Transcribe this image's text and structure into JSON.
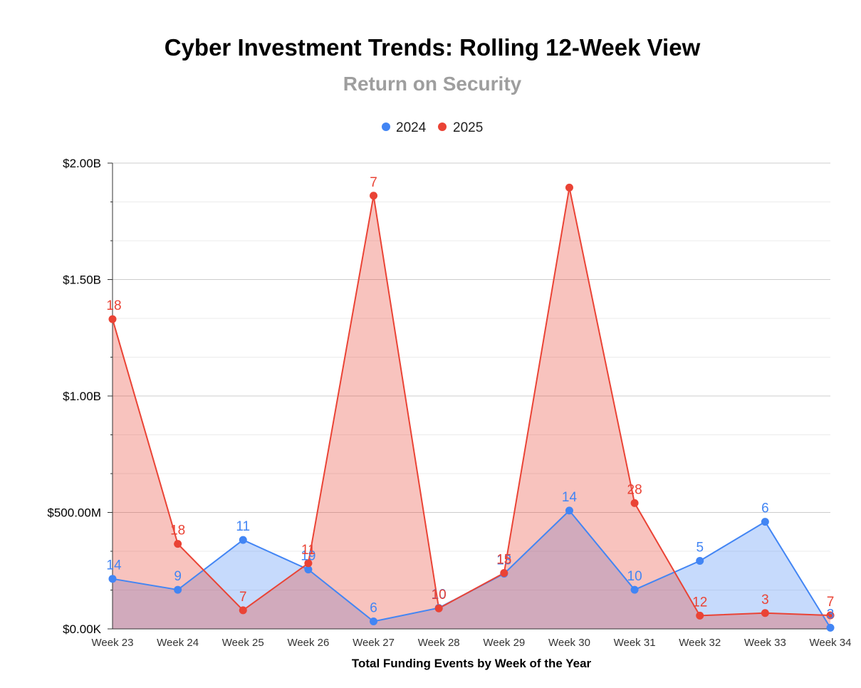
{
  "chart_data": {
    "type": "area",
    "title": "Cyber Investment Trends: Rolling 12-Week View",
    "subtitle": "Return on Security",
    "xlabel": "Total Funding Events by Week of the Year",
    "ylabel": "",
    "ylim": [
      0,
      2000000000
    ],
    "yticks": [
      {
        "value": 0,
        "label": "$0.00K"
      },
      {
        "value": 500000000,
        "label": "$500.00M"
      },
      {
        "value": 1000000000,
        "label": "$1.00B"
      },
      {
        "value": 1500000000,
        "label": "$1.50B"
      },
      {
        "value": 2000000000,
        "label": "$2.00B"
      }
    ],
    "grid": true,
    "legend_position": "top-center",
    "categories": [
      "Week 23",
      "Week 24",
      "Week 25",
      "Week 26",
      "Week 27",
      "Week 28",
      "Week 29",
      "Week 30",
      "Week 31",
      "Week 32",
      "Week 33",
      "Week 34"
    ],
    "series": [
      {
        "name": "2024",
        "color": "#4285f4",
        "fill": "rgba(66,133,244,0.30)",
        "values": [
          215000000,
          168000000,
          382000000,
          255000000,
          32000000,
          90000000,
          237000000,
          508000000,
          168000000,
          292000000,
          460000000,
          5000000
        ],
        "labels": [
          "14",
          "9",
          "11",
          "19",
          "6",
          "10",
          "13",
          "14",
          "10",
          "5",
          "6",
          "3"
        ]
      },
      {
        "name": "2025",
        "color": "#ea4335",
        "fill": "rgba(234,67,53,0.32)",
        "values": [
          1330000000,
          365000000,
          80000000,
          282000000,
          1860000000,
          88000000,
          240000000,
          1895000000,
          540000000,
          57000000,
          68000000,
          58000000
        ],
        "labels": [
          "18",
          "18",
          "7",
          "11",
          "7",
          "10",
          "15",
          "",
          "28",
          "12",
          "3",
          "7"
        ]
      }
    ]
  }
}
